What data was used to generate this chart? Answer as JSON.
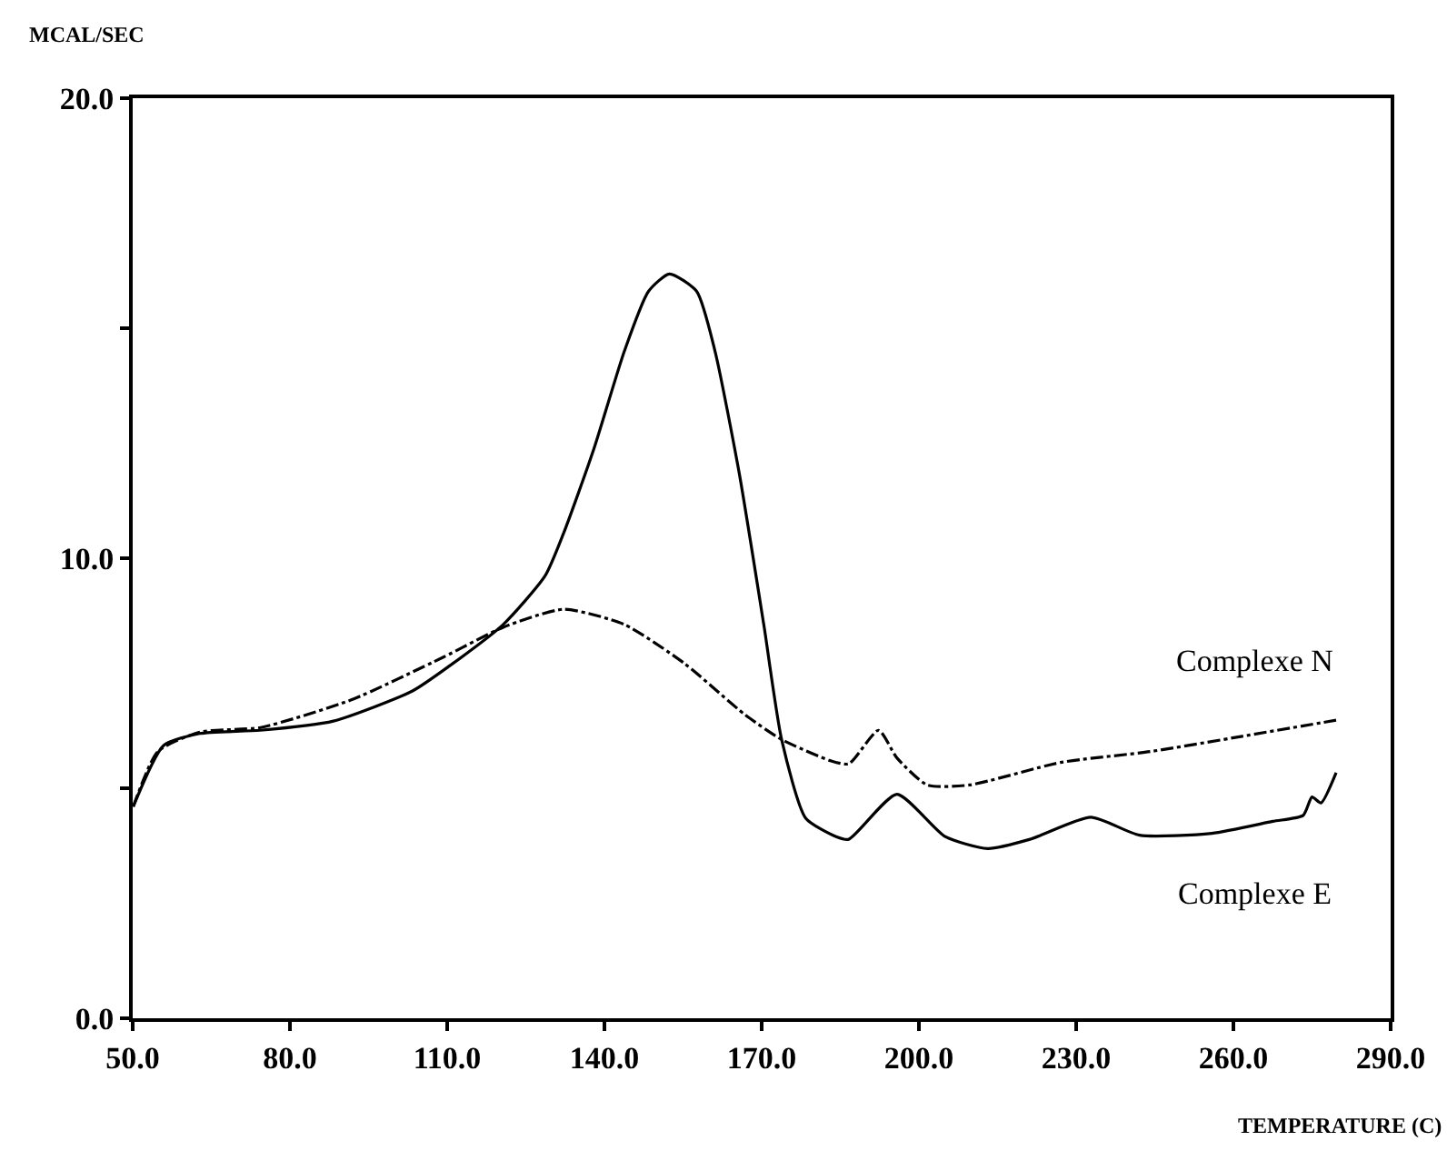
{
  "chart_data": {
    "type": "line",
    "xlabel": "TEMPERATURE (C)",
    "ylabel": "MCAL/SEC",
    "xlim": [
      50,
      290
    ],
    "xticks": [
      {
        "value": 50,
        "label": "50.0"
      },
      {
        "value": 80,
        "label": "80.0"
      },
      {
        "value": 110,
        "label": "110.0"
      },
      {
        "value": 140,
        "label": "140.0"
      },
      {
        "value": 170,
        "label": "170.0"
      },
      {
        "value": 200,
        "label": "200.0"
      },
      {
        "value": 230,
        "label": "230.0"
      },
      {
        "value": 260,
        "label": "260.0"
      },
      {
        "value": 290,
        "label": "290.0"
      }
    ],
    "ylim": [
      0,
      20
    ],
    "yticks": [
      {
        "value": 0,
        "label": "0.0"
      },
      {
        "value": 5,
        "label": null
      },
      {
        "value": 10,
        "label": "10.0"
      },
      {
        "value": 15,
        "label": null
      },
      {
        "value": 20,
        "label": "20.0"
      }
    ],
    "grid": false,
    "legend": false,
    "marker": "none",
    "series": [
      {
        "name": "Complexe N",
        "color": "#000000",
        "line_style": "dashed",
        "x": [
          50.1,
          54.8,
          62.8,
          74.4,
          91.7,
          109.1,
          120.7,
          132.2,
          143.8,
          155.3,
          166.9,
          173.8,
          183.1,
          186.6,
          192.3,
          195.8,
          201.6,
          209.6,
          227,
          244.3,
          261.7,
          279.6
        ],
        "values": [
          4.6,
          5.8,
          6.22,
          6.32,
          6.92,
          7.84,
          8.5,
          8.89,
          8.56,
          7.71,
          6.59,
          6.06,
          5.6,
          5.53,
          6.26,
          5.66,
          5.07,
          5.07,
          5.56,
          5.8,
          6.13,
          6.48
        ]
      },
      {
        "name": "Complexe E",
        "color": "#000000",
        "line_style": "solid",
        "x": [
          50.1,
          55.9,
          62.8,
          74.3,
          88.3,
          103.3,
          110.2,
          120.7,
          128.7,
          132.2,
          138,
          143.8,
          148.4,
          152.4,
          157.6,
          161.1,
          165.7,
          170.4,
          173.8,
          178.4,
          184.2,
          186.6,
          195.8,
          205,
          213.1,
          221.2,
          232.8,
          242.1,
          255.9,
          267.5,
          273.3,
          275,
          276.7,
          279.6
        ],
        "values": [
          4.6,
          5.93,
          6.19,
          6.26,
          6.46,
          7.11,
          7.64,
          8.56,
          9.62,
          10.54,
          12.38,
          14.5,
          15.8,
          16.18,
          15.8,
          14.5,
          11.86,
          8.56,
          6.06,
          4.35,
          3.95,
          3.89,
          4.87,
          3.95,
          3.69,
          3.89,
          4.37,
          3.98,
          4.02,
          4.28,
          4.41,
          4.81,
          4.68,
          5.34
        ]
      }
    ]
  }
}
